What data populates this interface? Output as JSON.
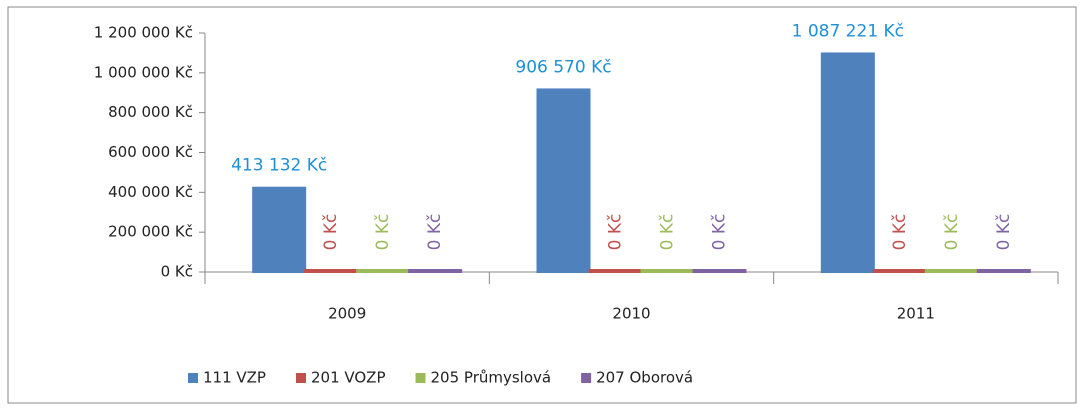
{
  "chart_data": {
    "type": "bar",
    "categories": [
      "2009",
      "2010",
      "2011"
    ],
    "series": [
      {
        "name": "111 VZP",
        "color": "#4f81bd",
        "values": [
          413132,
          906570,
          1087221
        ],
        "value_labels": [
          "413 132 Kč",
          "906 570 Kč",
          "1 087 221 Kč"
        ]
      },
      {
        "name": "201 VOZP",
        "color": "#c0504d",
        "values": [
          0,
          0,
          0
        ],
        "value_labels": [
          "0 Kč",
          "0 Kč",
          "0 Kč"
        ]
      },
      {
        "name": "205 Průmyslová",
        "color": "#9bbb59",
        "values": [
          0,
          0,
          0
        ],
        "value_labels": [
          "0 Kč",
          "0 Kč",
          "0 Kč"
        ]
      },
      {
        "name": "207 Oborová",
        "color": "#8064a2",
        "values": [
          0,
          0,
          0
        ],
        "value_labels": [
          "0 Kč",
          "0 Kč",
          "0 Kč"
        ]
      }
    ],
    "ylim": [
      0,
      1200000
    ],
    "yticks": [
      {
        "value": 0,
        "label": "0 Kč"
      },
      {
        "value": 200000,
        "label": "200 000 Kč"
      },
      {
        "value": 400000,
        "label": "400 000 Kč"
      },
      {
        "value": 600000,
        "label": "600 000 Kč"
      },
      {
        "value": 800000,
        "label": "800 000 Kč"
      },
      {
        "value": 1000000,
        "label": "1 000 000 Kč"
      },
      {
        "value": 1200000,
        "label": "1 200 000 Kč"
      }
    ],
    "grid": false,
    "legend": "bottom"
  }
}
